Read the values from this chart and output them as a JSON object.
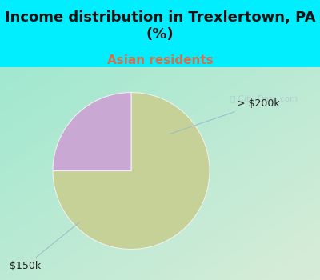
{
  "title": "Income distribution in Trexlertown, PA\n(%)",
  "subtitle": "Asian residents",
  "slices": [
    75,
    25
  ],
  "colors": [
    "#c5d196",
    "#c9a8d4"
  ],
  "background_cyan": "#00eeff",
  "background_top": "#00eeff",
  "title_fontsize": 13,
  "subtitle_fontsize": 11,
  "subtitle_color": "#d4704a",
  "label_fontsize": 9,
  "watermark": "City-Data.com",
  "startangle": 90,
  "grad_colors": [
    "#a8e8d8",
    "#ddeedd"
  ],
  "chart_bg_left": "#b0ead8",
  "chart_bg_right": "#e0ecd8"
}
